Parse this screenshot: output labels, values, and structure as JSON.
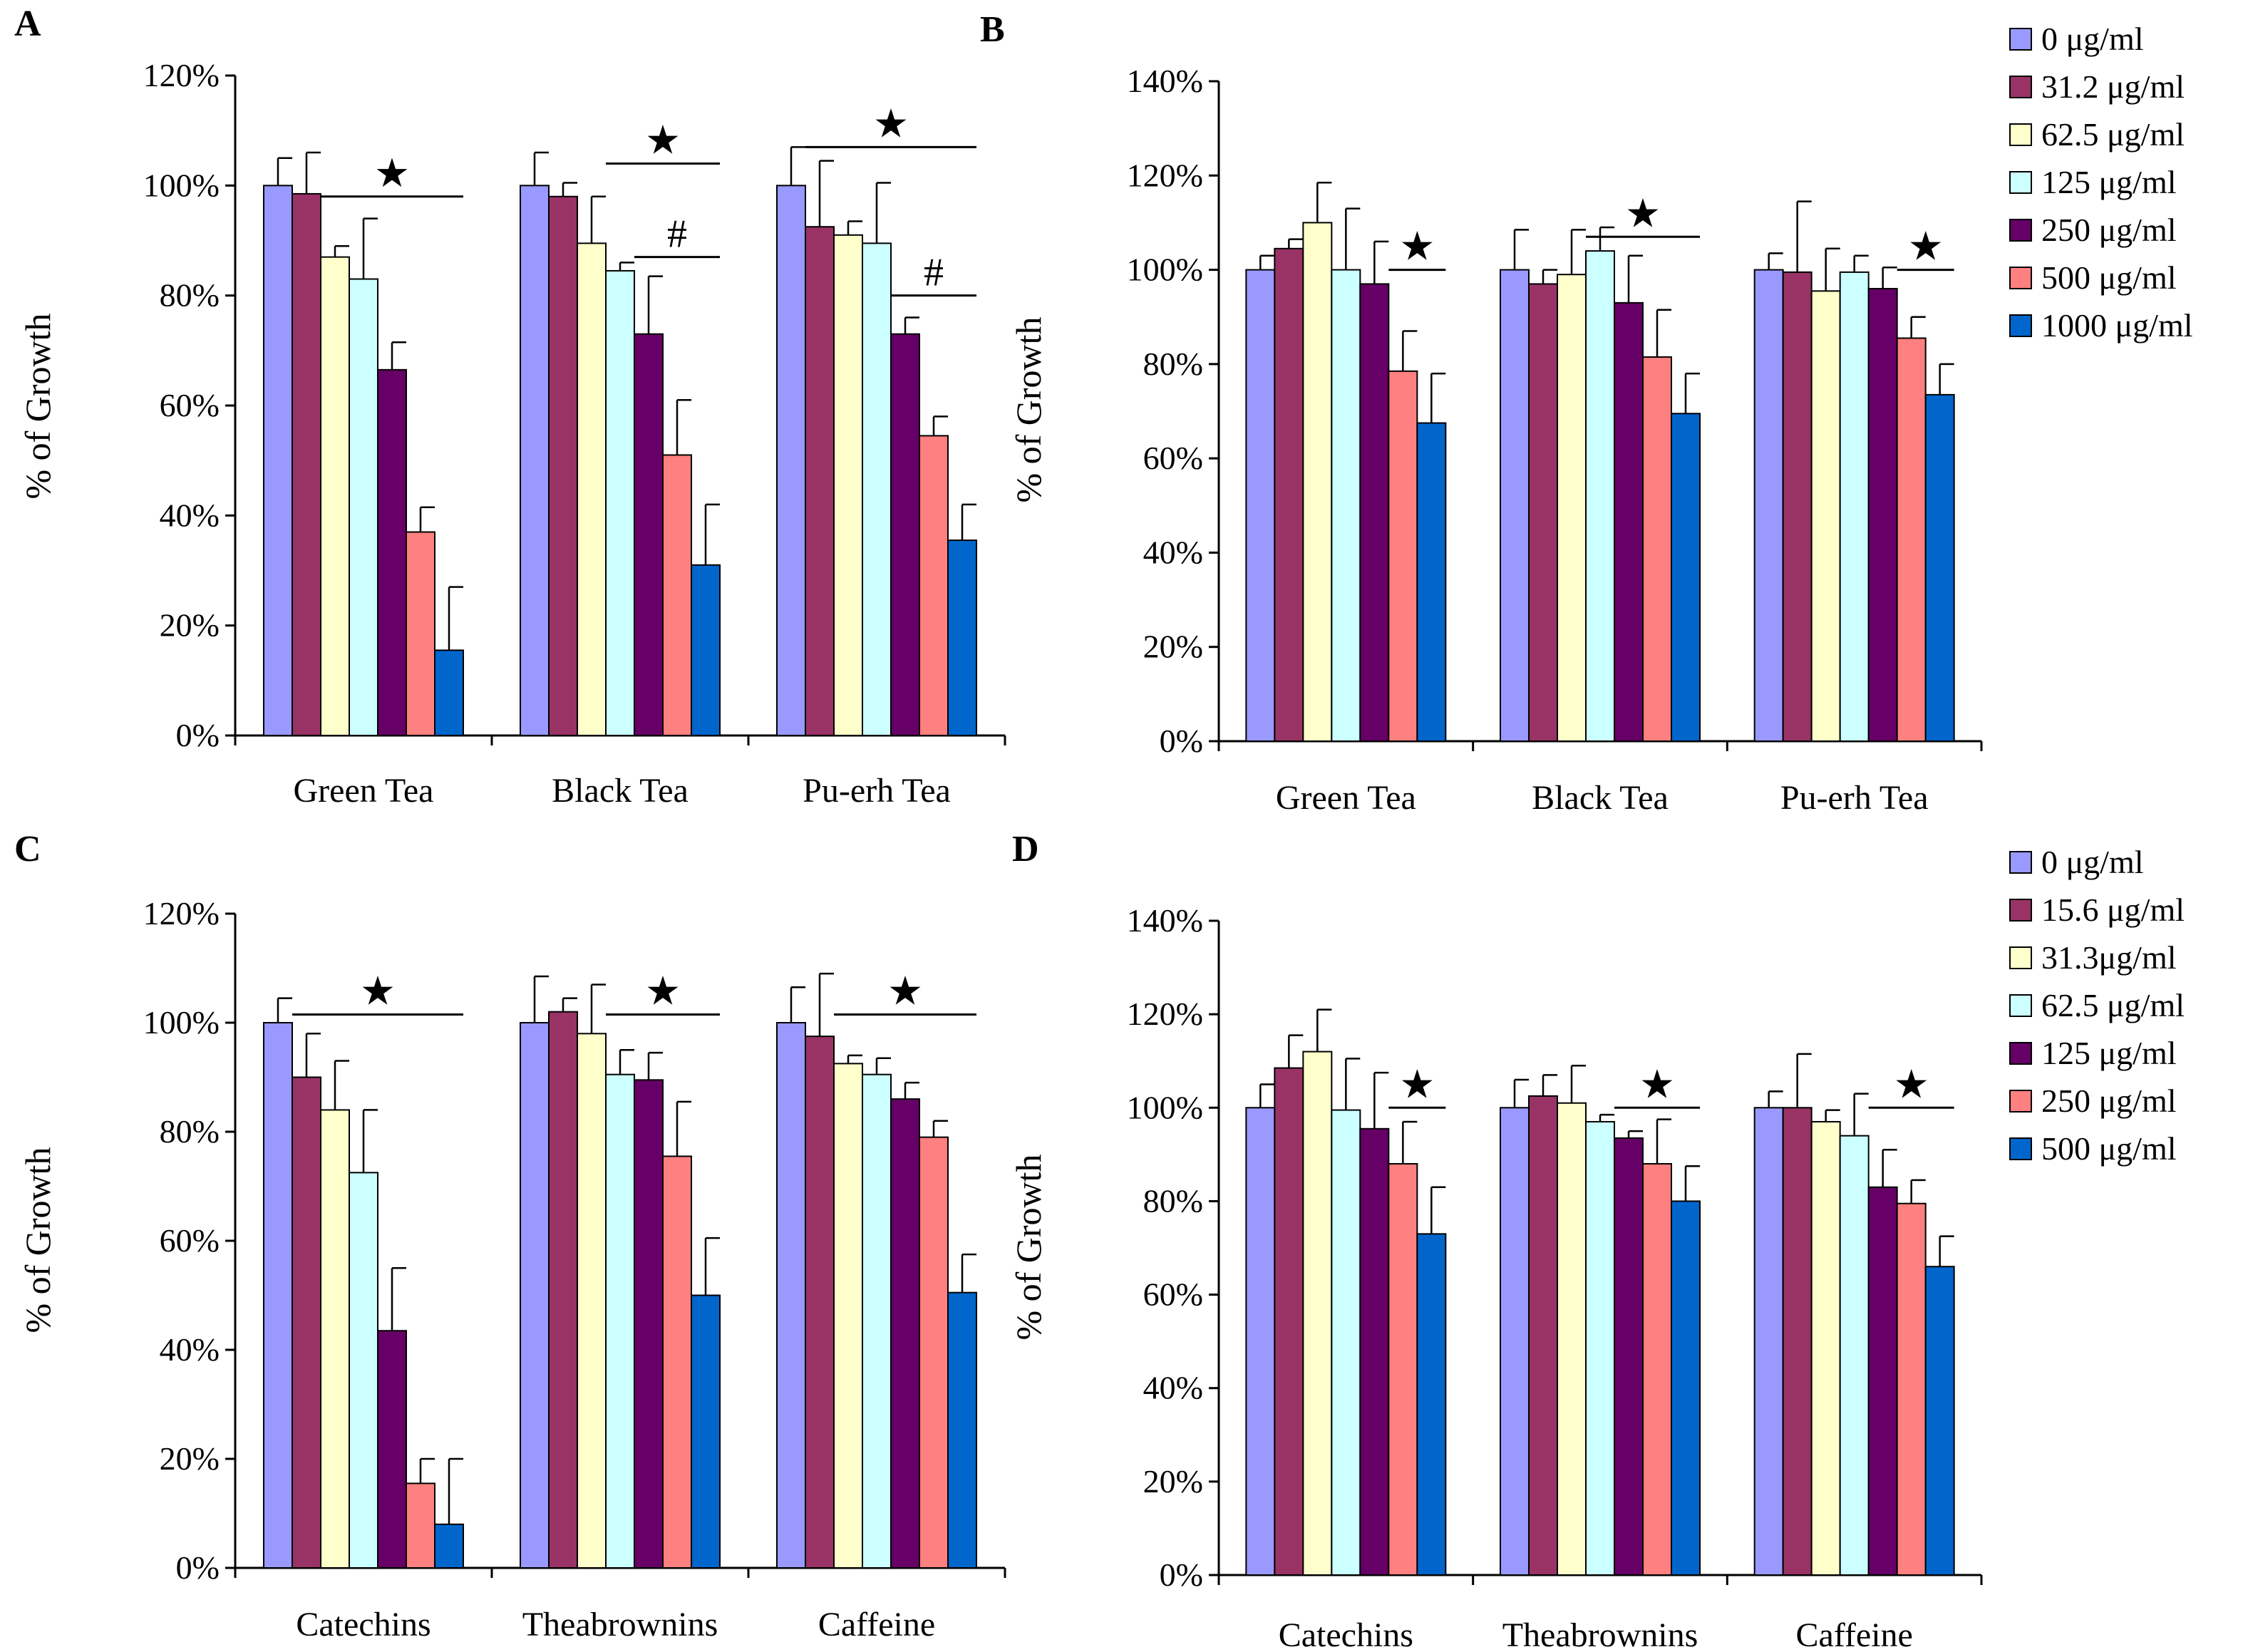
{
  "chart_data": [
    {
      "panel": "A",
      "type": "bar",
      "ylabel": "% of Growth",
      "ylim": [
        0,
        120
      ],
      "yticks": [
        "0%",
        "20%",
        "40%",
        "60%",
        "80%",
        "100%",
        "120%"
      ],
      "categories": [
        "Green Tea",
        "Black Tea",
        "Pu-erh Tea"
      ],
      "series": [
        {
          "name": "0 μg/ml",
          "values": [
            100,
            100,
            100
          ],
          "errors": [
            5,
            6,
            7
          ]
        },
        {
          "name": "31.2 μg/ml",
          "values": [
            98.5,
            98,
            92.5
          ],
          "errors": [
            7.5,
            2.5,
            12
          ]
        },
        {
          "name": "62.5 μg/ml",
          "values": [
            87,
            89.5,
            91
          ],
          "errors": [
            2,
            8.5,
            2.5
          ]
        },
        {
          "name": "125 μg/ml",
          "values": [
            83,
            84.5,
            89.5
          ],
          "errors": [
            11,
            1.5,
            11
          ]
        },
        {
          "name": "250 μg/ml",
          "values": [
            66.5,
            73,
            73
          ],
          "errors": [
            5,
            10.5,
            3
          ]
        },
        {
          "name": "500 μg/ml",
          "values": [
            37,
            51,
            54.5
          ],
          "errors": [
            4.5,
            10,
            3.5
          ]
        },
        {
          "name": "1000 μg/ml",
          "values": [
            15.5,
            31,
            35.5
          ],
          "errors": [
            11.5,
            11,
            6.5
          ]
        }
      ],
      "annotations": [
        {
          "label": "★",
          "group": 0,
          "from_series": 2,
          "to_series": 6,
          "level": 98
        },
        {
          "label": "★",
          "group": 1,
          "from_series": 3,
          "to_series": 6,
          "level": 104
        },
        {
          "label": "#",
          "group": 1,
          "from_series": 4,
          "to_series": 6,
          "level": 87
        },
        {
          "label": "★",
          "group": 2,
          "from_series": 1,
          "to_series": 6,
          "level": 107
        },
        {
          "label": "#",
          "group": 2,
          "from_series": 4,
          "to_series": 6,
          "level": 80
        }
      ]
    },
    {
      "panel": "B",
      "type": "bar",
      "ylabel": "% of Growth",
      "ylim": [
        0,
        140
      ],
      "yticks": [
        "0%",
        "20%",
        "40%",
        "60%",
        "80%",
        "100%",
        "120%",
        "140%"
      ],
      "categories": [
        "Green Tea",
        "Black Tea",
        "Pu-erh Tea"
      ],
      "legend": [
        "0 μg/ml",
        "31.2 μg/ml",
        "62.5 μg/ml",
        "125 μg/ml",
        "250 μg/ml",
        "500 μg/ml",
        "1000 μg/ml"
      ],
      "series": [
        {
          "name": "0 μg/ml",
          "values": [
            100,
            100,
            100
          ],
          "errors": [
            3,
            8.5,
            3.5
          ]
        },
        {
          "name": "31.2 μg/ml",
          "values": [
            104.5,
            97,
            99.5
          ],
          "errors": [
            2,
            3,
            15
          ]
        },
        {
          "name": "62.5 μg/ml",
          "values": [
            110,
            99,
            95.5
          ],
          "errors": [
            8.5,
            9.5,
            9
          ]
        },
        {
          "name": "125 μg/ml",
          "values": [
            100,
            104,
            99.5
          ],
          "errors": [
            13,
            5,
            3.5
          ]
        },
        {
          "name": "250 μg/ml",
          "values": [
            97,
            93,
            96
          ],
          "errors": [
            9,
            10,
            4.5
          ]
        },
        {
          "name": "500 μg/ml",
          "values": [
            78.5,
            81.5,
            85.5
          ],
          "errors": [
            8.5,
            10,
            4.5
          ]
        },
        {
          "name": "1000 μg/ml",
          "values": [
            67.5,
            69.5,
            73.5
          ],
          "errors": [
            10.5,
            8.5,
            6.5
          ]
        }
      ],
      "annotations": [
        {
          "label": "★",
          "group": 0,
          "from_series": 5,
          "to_series": 6,
          "level": 100
        },
        {
          "label": "★",
          "group": 1,
          "from_series": 3,
          "to_series": 6,
          "level": 107
        },
        {
          "label": "★",
          "group": 2,
          "from_series": 5,
          "to_series": 6,
          "level": 100
        }
      ]
    },
    {
      "panel": "C",
      "type": "bar",
      "ylabel": "% of Growth",
      "ylim": [
        0,
        120
      ],
      "yticks": [
        "0%",
        "20%",
        "40%",
        "60%",
        "80%",
        "100%",
        "120%"
      ],
      "categories": [
        "Catechins",
        "Theabrownins",
        "Caffeine"
      ],
      "series": [
        {
          "name": "0 μg/ml",
          "values": [
            100,
            100,
            100
          ],
          "errors": [
            4.5,
            8.5,
            6.5
          ]
        },
        {
          "name": "15.6 μg/ml",
          "values": [
            90,
            102,
            97.5
          ],
          "errors": [
            8,
            2.5,
            11.5
          ]
        },
        {
          "name": "31.3 μg/ml",
          "values": [
            84,
            98,
            92.5
          ],
          "errors": [
            9,
            9,
            1.5
          ]
        },
        {
          "name": "62.5 μg/ml",
          "values": [
            72.5,
            90.5,
            90.5
          ],
          "errors": [
            11.5,
            4.5,
            3
          ]
        },
        {
          "name": "125 μg/ml",
          "values": [
            43.5,
            89.5,
            86
          ],
          "errors": [
            11.5,
            5,
            3
          ]
        },
        {
          "name": "250 μg/ml",
          "values": [
            15.5,
            75.5,
            79
          ],
          "errors": [
            4.5,
            10,
            3
          ]
        },
        {
          "name": "500 μg/ml",
          "values": [
            8,
            50,
            50.5
          ],
          "errors": [
            12,
            10.5,
            7
          ]
        }
      ],
      "annotations": [
        {
          "label": "★",
          "group": 0,
          "from_series": 1,
          "to_series": 6,
          "level": 101.5
        },
        {
          "label": "★",
          "group": 1,
          "from_series": 3,
          "to_series": 6,
          "level": 101.5
        },
        {
          "label": "★",
          "group": 2,
          "from_series": 2,
          "to_series": 6,
          "level": 101.5
        }
      ]
    },
    {
      "panel": "D",
      "type": "bar",
      "ylabel": "% of Growth",
      "ylim": [
        0,
        140
      ],
      "yticks": [
        "0%",
        "20%",
        "40%",
        "60%",
        "80%",
        "100%",
        "120%",
        "140%"
      ],
      "categories": [
        "Catechins",
        "Theabrownins",
        "Caffeine"
      ],
      "legend": [
        "0 μg/ml",
        "15.6 μg/ml",
        "31.3μg/ml",
        "62.5 μg/ml",
        "125 μg/ml",
        "250 μg/ml",
        "500 μg/ml"
      ],
      "series": [
        {
          "name": "0 μg/ml",
          "values": [
            100,
            100,
            100
          ],
          "errors": [
            5,
            6,
            3.5
          ]
        },
        {
          "name": "15.6 μg/ml",
          "values": [
            108.5,
            102.5,
            100
          ],
          "errors": [
            7,
            4.5,
            11.5
          ]
        },
        {
          "name": "31.3μg/ml",
          "values": [
            112,
            101,
            97
          ],
          "errors": [
            9,
            8,
            2.5
          ]
        },
        {
          "name": "62.5 μg/ml",
          "values": [
            99.5,
            97,
            94
          ],
          "errors": [
            11,
            1.5,
            9
          ]
        },
        {
          "name": "125 μg/ml",
          "values": [
            95.5,
            93.5,
            83
          ],
          "errors": [
            12,
            1.5,
            8
          ]
        },
        {
          "name": "250 μg/ml",
          "values": [
            88,
            88,
            79.5
          ],
          "errors": [
            9,
            9.5,
            5
          ]
        },
        {
          "name": "500 μg/ml",
          "values": [
            73,
            80,
            66
          ],
          "errors": [
            10,
            7.5,
            6.5
          ]
        }
      ],
      "annotations": [
        {
          "label": "★",
          "group": 0,
          "from_series": 5,
          "to_series": 6,
          "level": 100
        },
        {
          "label": "★",
          "group": 1,
          "from_series": 4,
          "to_series": 6,
          "level": 100
        },
        {
          "label": "★",
          "group": 2,
          "from_series": 4,
          "to_series": 6,
          "level": 100
        }
      ]
    }
  ],
  "colors": [
    "#9999ff",
    "#993366",
    "#ffffcc",
    "#ccffff",
    "#660066",
    "#ff8080",
    "#0066cc"
  ]
}
